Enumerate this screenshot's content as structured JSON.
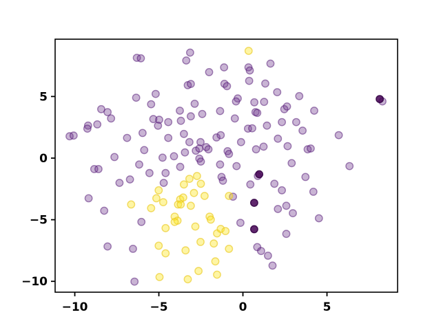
{
  "figure": {
    "background": "#ffffff",
    "frame_color": "#000000"
  },
  "chart_data": {
    "type": "scatter",
    "title": "",
    "xlabel": "",
    "ylabel": "",
    "grid": false,
    "legend": null,
    "xlim": [
      -11.17,
      9.2
    ],
    "ylim": [
      -10.88,
      9.65
    ],
    "xticks": [
      -10,
      -5,
      0,
      5
    ],
    "yticks": [
      -10,
      -5,
      0,
      5
    ],
    "xtick_labels": [
      "−10",
      "−5",
      "0",
      "5"
    ],
    "ytick_labels": [
      "−10",
      "−5",
      "0",
      "5"
    ],
    "marker": "circle",
    "marker_alpha": 0.4,
    "colors": {
      "purple_cluster": "#713A8E",
      "yellow_cluster": "#FDE725",
      "dark_overlap": "#440154"
    },
    "series": [
      {
        "name": "cluster-purple",
        "fill": "rgba(113,58,142,0.38)",
        "stroke": "rgba(75,13,111,0.5)",
        "points": [
          [
            -6.31,
            8.14
          ],
          [
            -6.07,
            8.1
          ],
          [
            -6.35,
            4.9
          ],
          [
            -8.43,
            3.97
          ],
          [
            -8.05,
            3.73
          ],
          [
            -7.84,
            3.22
          ],
          [
            -9.21,
            2.64
          ],
          [
            -8.66,
            2.74
          ],
          [
            -3.14,
            8.56
          ],
          [
            -3.37,
            7.92
          ],
          [
            -2.01,
            6.98
          ],
          [
            -1.12,
            7.36
          ],
          [
            -3.28,
            5.92
          ],
          [
            -3.1,
            6.02
          ],
          [
            -5.19,
            5.21
          ],
          [
            -5.46,
            4.37
          ],
          [
            -3.75,
            3.85
          ],
          [
            -2.87,
            4.41
          ],
          [
            -3.1,
            3.39
          ],
          [
            -2.42,
            3.58
          ],
          [
            -1.36,
            3.82
          ],
          [
            -5.33,
            3.17
          ],
          [
            -4.98,
            3.11
          ],
          [
            -4.44,
            2.92
          ],
          [
            -3.69,
            3.03
          ],
          [
            1.64,
            7.67
          ],
          [
            0.33,
            7.36
          ],
          [
            0.41,
            7.11
          ],
          [
            -1.1,
            6.03
          ],
          [
            -0.95,
            5.84
          ],
          [
            0.37,
            6.27
          ],
          [
            1.33,
            6.05
          ],
          [
            2.04,
            5.35
          ],
          [
            3.35,
            5.03
          ],
          [
            -0.31,
            4.84
          ],
          [
            -0.41,
            4.6
          ],
          [
            0.68,
            4.53
          ],
          [
            1.26,
            4.56
          ],
          [
            2.46,
            3.97
          ],
          [
            2.62,
            4.19
          ],
          [
            0.75,
            3.73
          ],
          [
            0.85,
            3.67
          ],
          [
            -0.48,
            3.22
          ],
          [
            2.32,
            2.92
          ],
          [
            3.17,
            2.92
          ],
          [
            8.3,
            4.6
          ],
          [
            4.24,
            3.85
          ],
          [
            -9.25,
            2.39
          ],
          [
            -10.31,
            1.77
          ],
          [
            -10.07,
            1.83
          ],
          [
            -6.89,
            1.64
          ],
          [
            -7.64,
            0.09
          ],
          [
            -6.17,
            -0.52
          ],
          [
            -8.84,
            -0.89
          ],
          [
            -8.59,
            -0.89
          ],
          [
            -7.34,
            -2.01
          ],
          [
            -6.72,
            -1.73
          ],
          [
            -9.18,
            -3.26
          ],
          [
            -8.25,
            -4.27
          ],
          [
            -5.97,
            2.04
          ],
          [
            -5.05,
            2.63
          ],
          [
            -4.44,
            1.64
          ],
          [
            -3.51,
            1.96
          ],
          [
            -3.18,
            1.3
          ],
          [
            -2.52,
            1.3
          ],
          [
            -1.57,
            1.68
          ],
          [
            -1.32,
            1.86
          ],
          [
            -5.87,
            0.65
          ],
          [
            -4.78,
            0.04
          ],
          [
            -4.1,
            0.15
          ],
          [
            -3.45,
            0.46
          ],
          [
            -2.8,
            0.6
          ],
          [
            -2.59,
            0.78
          ],
          [
            -2.18,
            0.89
          ],
          [
            -2.05,
            0.71
          ],
          [
            -2.59,
            -0.04
          ],
          [
            -2.5,
            -0.28
          ],
          [
            -3.73,
            -0.71
          ],
          [
            -1.36,
            -0.52
          ],
          [
            -5.56,
            -1.21
          ],
          [
            -4.6,
            -1.21
          ],
          [
            -4.71,
            -2.01
          ],
          [
            -1.27,
            -1.53
          ],
          [
            -1.19,
            -1.83
          ],
          [
            0.3,
            2.39
          ],
          [
            0.55,
            2.42
          ],
          [
            1.43,
            2.64
          ],
          [
            3.55,
            2.23
          ],
          [
            -0.11,
            1.3
          ],
          [
            0.78,
            0.71
          ],
          [
            1.23,
            0.93
          ],
          [
            2.08,
            1.58
          ],
          [
            2.66,
            0.97
          ],
          [
            3.85,
            0.71
          ],
          [
            4.03,
            0.78
          ],
          [
            -0.91,
            0.56
          ],
          [
            -0.83,
            0.34
          ],
          [
            -0.38,
            -0.65
          ],
          [
            0.89,
            -1.45
          ],
          [
            0.44,
            -2.14
          ],
          [
            1.87,
            -2.08
          ],
          [
            2.32,
            -2.61
          ],
          [
            2.9,
            -0.41
          ],
          [
            3.72,
            -1.53
          ],
          [
            -0.59,
            -3.13
          ],
          [
            2.08,
            -4.13
          ],
          [
            2.58,
            -3.87
          ],
          [
            5.7,
            1.86
          ],
          [
            6.34,
            -0.65
          ],
          [
            4.19,
            -2.73
          ],
          [
            -6.04,
            -5.18
          ],
          [
            -8.05,
            -7.17
          ],
          [
            -6.54,
            -7.36
          ],
          [
            -6.45,
            -10.02
          ],
          [
            2.97,
            -4.47
          ],
          [
            -0.15,
            -5.25
          ],
          [
            2.58,
            -6.15
          ],
          [
            0.85,
            -7.22
          ],
          [
            1.08,
            -7.54
          ],
          [
            1.49,
            -7.92
          ],
          [
            1.76,
            -8.72
          ],
          [
            4.52,
            -4.88
          ]
        ]
      },
      {
        "name": "cluster-yellow",
        "fill": "rgba(253,231,37,0.42)",
        "stroke": "rgba(234,200,30,0.65)",
        "points": [
          [
            0.34,
            8.7
          ],
          [
            -6.65,
            -3.76
          ],
          [
            -2.73,
            -1.45
          ],
          [
            -3.18,
            -1.68
          ],
          [
            -2.5,
            -2.08
          ],
          [
            -3.51,
            -2.14
          ],
          [
            -5.01,
            -2.61
          ],
          [
            -2.91,
            -2.83
          ],
          [
            -2.28,
            -3.07
          ],
          [
            -5.15,
            -3.26
          ],
          [
            -4.74,
            -3.58
          ],
          [
            -3.73,
            -3.35
          ],
          [
            -3.55,
            -3.2
          ],
          [
            -3.86,
            -3.76
          ],
          [
            -3.7,
            -3.76
          ],
          [
            -3.1,
            -3.87
          ],
          [
            -0.83,
            -3.07
          ],
          [
            -5.46,
            -4.06
          ],
          [
            -4.06,
            -4.75
          ],
          [
            -3.89,
            -5.07
          ],
          [
            -4.06,
            -5.18
          ],
          [
            -1.98,
            -4.75
          ],
          [
            -1.91,
            -4.99
          ],
          [
            -4.6,
            -5.68
          ],
          [
            -2.83,
            -5.55
          ],
          [
            -1.54,
            -6.11
          ],
          [
            -5.01,
            -7.11
          ],
          [
            -4.6,
            -7.73
          ],
          [
            -3.41,
            -7.49
          ],
          [
            -2.52,
            -6.8
          ],
          [
            -1.73,
            -6.93
          ],
          [
            -1.64,
            -8.38
          ],
          [
            -2.64,
            -9.16
          ],
          [
            -4.96,
            -9.65
          ],
          [
            -3.28,
            -9.83
          ],
          [
            -1.54,
            -9.46
          ],
          [
            -1.32,
            -5.75
          ],
          [
            -1.04,
            -5.92
          ],
          [
            -0.83,
            -7.36
          ]
        ]
      },
      {
        "name": "dark-points",
        "fill": "rgba(68,1,84,0.85)",
        "stroke": "rgba(50,0,66,0.9)",
        "points": [
          [
            8.14,
            4.79
          ],
          [
            0.97,
            -1.31
          ],
          [
            0.67,
            -3.63
          ],
          [
            0.67,
            -5.77
          ]
        ]
      }
    ]
  }
}
